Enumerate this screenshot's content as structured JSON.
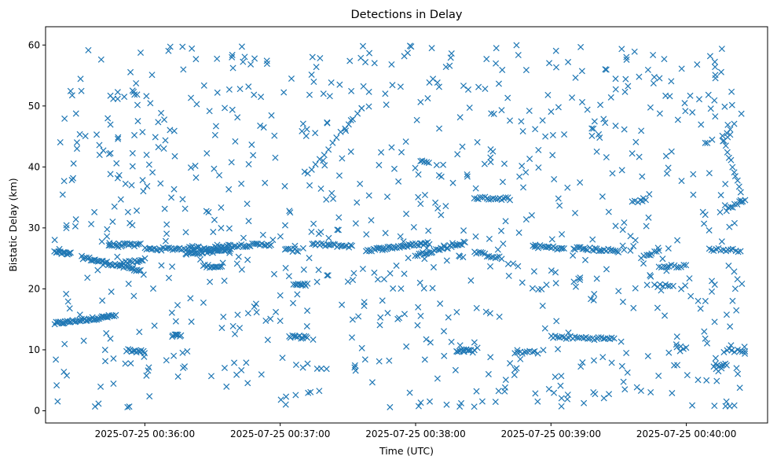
{
  "chart_data": {
    "type": "scatter",
    "title": "Detections in Delay",
    "xlabel": "Time (UTC)",
    "ylabel": "Bistatic Delay (km)",
    "x_axis": {
      "kind": "time",
      "range": [
        "2025-07-25 00:35:16",
        "2025-07-25 00:40:36"
      ],
      "ticks": [
        "2025-07-25 00:36:00",
        "2025-07-25 00:37:00",
        "2025-07-25 00:38:00",
        "2025-07-25 00:39:00",
        "2025-07-25 00:40:00"
      ]
    },
    "y_axis": {
      "range": [
        -2,
        63
      ],
      "ticks": [
        0,
        10,
        20,
        30,
        40,
        50,
        60
      ]
    },
    "grid": false,
    "legend": "none",
    "marker": "x",
    "series_color": "#1f77b4",
    "tracks": [
      {
        "t0": "2025-07-25 00:35:20",
        "t1": "2025-07-25 00:35:47",
        "y0": 14.3,
        "y1": 15.6,
        "points": 46
      },
      {
        "t0": "2025-07-25 00:35:20",
        "t1": "2025-07-25 00:35:27",
        "y0": 26.0,
        "y1": 25.7,
        "points": 14
      },
      {
        "t0": "2025-07-25 00:35:32",
        "t1": "2025-07-25 00:35:58",
        "y0": 25.2,
        "y1": 23.0,
        "points": 40
      },
      {
        "t0": "2025-07-25 00:35:44",
        "t1": "2025-07-25 00:35:58",
        "y0": 27.2,
        "y1": 27.2,
        "points": 22
      },
      {
        "t0": "2025-07-25 00:35:50",
        "t1": "2025-07-25 00:36:00",
        "y0": 24.2,
        "y1": 24.8,
        "points": 14
      },
      {
        "t0": "2025-07-25 00:35:52",
        "t1": "2025-07-25 00:36:00",
        "y0": 10.0,
        "y1": 9.6,
        "points": 12
      },
      {
        "t0": "2025-07-25 00:36:00",
        "t1": "2025-07-25 00:36:32",
        "y0": 26.5,
        "y1": 26.7,
        "points": 40
      },
      {
        "t0": "2025-07-25 00:36:18",
        "t1": "2025-07-25 00:36:38",
        "y0": 25.8,
        "y1": 26.4,
        "points": 34
      },
      {
        "t0": "2025-07-25 00:36:26",
        "t1": "2025-07-25 00:36:34",
        "y0": 23.8,
        "y1": 23.6,
        "points": 12
      },
      {
        "t0": "2025-07-25 00:36:32",
        "t1": "2025-07-25 00:36:56",
        "y0": 27.0,
        "y1": 27.3,
        "points": 30
      },
      {
        "t0": "2025-07-25 00:36:12",
        "t1": "2025-07-25 00:36:16",
        "y0": 12.3,
        "y1": 12.4,
        "points": 8
      },
      {
        "t0": "2025-07-25 00:37:02",
        "t1": "2025-07-25 00:37:08",
        "y0": 26.4,
        "y1": 26.3,
        "points": 8
      },
      {
        "t0": "2025-07-25 00:37:06",
        "t1": "2025-07-25 00:37:12",
        "y0": 20.8,
        "y1": 20.7,
        "points": 10
      },
      {
        "t0": "2025-07-25 00:37:04",
        "t1": "2025-07-25 00:37:12",
        "y0": 12.1,
        "y1": 12.1,
        "points": 12
      },
      {
        "t0": "2025-07-25 00:37:14",
        "t1": "2025-07-25 00:37:32",
        "y0": 27.3,
        "y1": 27.0,
        "points": 22
      },
      {
        "t0": "2025-07-25 00:37:12",
        "t1": "2025-07-25 00:37:36",
        "y0": 38.8,
        "y1": 49.7,
        "points": 14
      },
      {
        "t0": "2025-07-25 00:37:38",
        "t1": "2025-07-25 00:38:06",
        "y0": 26.3,
        "y1": 27.5,
        "points": 44
      },
      {
        "t0": "2025-07-25 00:38:00",
        "t1": "2025-07-25 00:38:22",
        "y0": 25.5,
        "y1": 27.6,
        "points": 30
      },
      {
        "t0": "2025-07-25 00:38:02",
        "t1": "2025-07-25 00:38:06",
        "y0": 41.0,
        "y1": 40.6,
        "points": 5
      },
      {
        "t0": "2025-07-25 00:38:18",
        "t1": "2025-07-25 00:38:26",
        "y0": 9.9,
        "y1": 9.8,
        "points": 12
      },
      {
        "t0": "2025-07-25 00:38:26",
        "t1": "2025-07-25 00:38:42",
        "y0": 34.9,
        "y1": 34.8,
        "points": 18
      },
      {
        "t0": "2025-07-25 00:38:26",
        "t1": "2025-07-25 00:38:38",
        "y0": 26.0,
        "y1": 25.0,
        "points": 14
      },
      {
        "t0": "2025-07-25 00:38:44",
        "t1": "2025-07-25 00:38:54",
        "y0": 9.5,
        "y1": 9.6,
        "points": 10
      },
      {
        "t0": "2025-07-25 00:38:52",
        "t1": "2025-07-25 00:39:06",
        "y0": 27.0,
        "y1": 26.6,
        "points": 18
      },
      {
        "t0": "2025-07-25 00:39:00",
        "t1": "2025-07-25 00:39:28",
        "y0": 12.1,
        "y1": 11.8,
        "points": 30
      },
      {
        "t0": "2025-07-25 00:39:10",
        "t1": "2025-07-25 00:39:30",
        "y0": 26.7,
        "y1": 26.2,
        "points": 26
      },
      {
        "t0": "2025-07-25 00:39:36",
        "t1": "2025-07-25 00:39:42",
        "y0": 34.2,
        "y1": 34.8,
        "points": 6
      },
      {
        "t0": "2025-07-25 00:39:40",
        "t1": "2025-07-25 00:39:48",
        "y0": 25.2,
        "y1": 26.3,
        "points": 8
      },
      {
        "t0": "2025-07-25 00:39:46",
        "t1": "2025-07-25 00:39:54",
        "y0": 20.5,
        "y1": 20.6,
        "points": 8
      },
      {
        "t0": "2025-07-25 00:39:48",
        "t1": "2025-07-25 00:40:00",
        "y0": 23.6,
        "y1": 23.8,
        "points": 12
      },
      {
        "t0": "2025-07-25 00:39:56",
        "t1": "2025-07-25 00:40:00",
        "y0": 10.4,
        "y1": 10.4,
        "points": 4
      },
      {
        "t0": "2025-07-25 00:40:10",
        "t1": "2025-07-25 00:40:24",
        "y0": 26.5,
        "y1": 26.3,
        "points": 14
      },
      {
        "t0": "2025-07-25 00:40:12",
        "t1": "2025-07-25 00:40:18",
        "y0": 7.5,
        "y1": 7.5,
        "points": 8
      },
      {
        "t0": "2025-07-25 00:40:16",
        "t1": "2025-07-25 00:40:24",
        "y0": 45.0,
        "y1": 36.0,
        "points": 12
      },
      {
        "t0": "2025-07-25 00:40:18",
        "t1": "2025-07-25 00:40:26",
        "y0": 33.0,
        "y1": 34.8,
        "points": 10
      },
      {
        "t0": "2025-07-25 00:40:18",
        "t1": "2025-07-25 00:40:26",
        "y0": 10.0,
        "y1": 9.7,
        "points": 8
      }
    ],
    "scatter": {
      "count": 820,
      "t_range": [
        "2025-07-25 00:35:20",
        "2025-07-25 00:40:26"
      ],
      "y_range": [
        0.5,
        60.0
      ]
    }
  }
}
